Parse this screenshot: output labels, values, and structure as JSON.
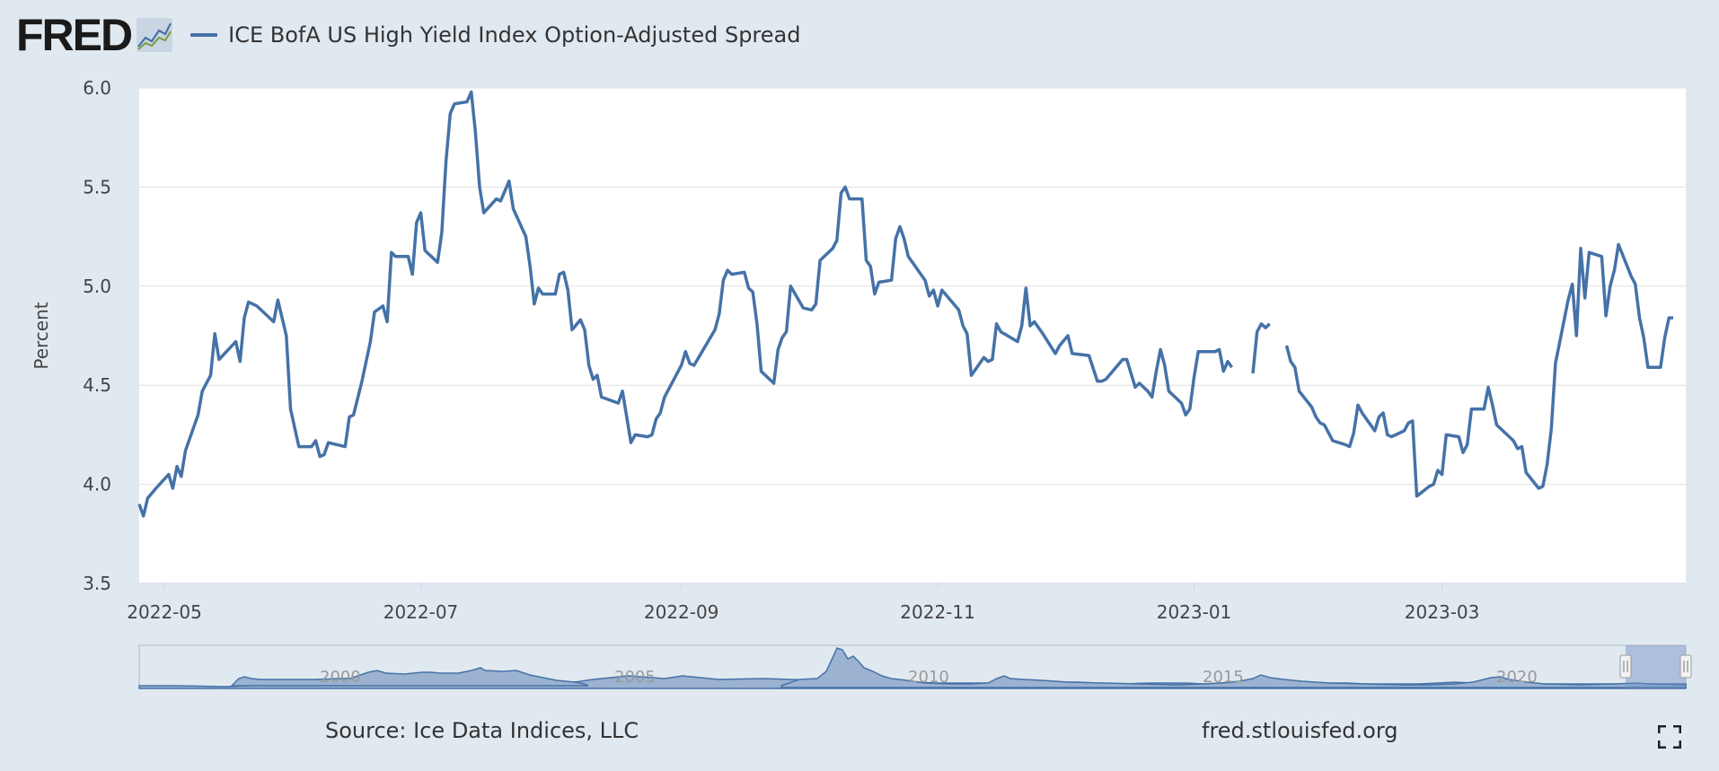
{
  "header": {
    "logo_text": "FRED",
    "logo_icon": "mini-line-chart-icon",
    "legend_label": "ICE BofA US High Yield Index Option-Adjusted Spread"
  },
  "footer": {
    "source": "Source: Ice Data Indices, LLC",
    "site": "fred.stlouisfed.org",
    "fullscreen_icon": "fullscreen-icon"
  },
  "colors": {
    "series": "#4572a7",
    "navigator_fill": "#9bb2d1",
    "background": "#e1e9f0",
    "plot_background": "#ffffff"
  },
  "chart_data": {
    "type": "line",
    "title": "",
    "xlabel": "",
    "ylabel": "Percent",
    "ylim": [
      3.5,
      6.0
    ],
    "y_ticks": [
      "3.5",
      "4.0",
      "4.5",
      "5.0",
      "5.5",
      "6.0"
    ],
    "x_ticks": [
      "2022-05",
      "2022-07",
      "2022-09",
      "2022-11",
      "2023-01",
      "2023-03"
    ],
    "x_tick_values": [
      "2022-05-01",
      "2022-07-01",
      "2022-09-01",
      "2022-11-01",
      "2023-01-01",
      "2023-03-01"
    ],
    "xlim": [
      "2022-04-25",
      "2023-04-28"
    ],
    "grid": true,
    "series": [
      {
        "name": "ICE BofA US High Yield Index Option-Adjusted Spread",
        "segments": [
          [
            [
              "2022-04-25",
              3.9
            ],
            [
              "2022-04-26",
              3.84
            ],
            [
              "2022-04-27",
              3.93
            ],
            [
              "2022-04-29",
              3.98
            ],
            [
              "2022-05-02",
              4.05
            ],
            [
              "2022-05-03",
              3.98
            ],
            [
              "2022-05-04",
              4.09
            ],
            [
              "2022-05-05",
              4.04
            ],
            [
              "2022-05-06",
              4.17
            ],
            [
              "2022-05-09",
              4.35
            ],
            [
              "2022-05-10",
              4.47
            ],
            [
              "2022-05-12",
              4.55
            ],
            [
              "2022-05-13",
              4.76
            ],
            [
              "2022-05-14",
              4.63
            ],
            [
              "2022-05-18",
              4.72
            ],
            [
              "2022-05-19",
              4.62
            ],
            [
              "2022-05-20",
              4.84
            ],
            [
              "2022-05-21",
              4.92
            ],
            [
              "2022-05-23",
              4.9
            ],
            [
              "2022-05-27",
              4.82
            ],
            [
              "2022-05-28",
              4.93
            ],
            [
              "2022-05-30",
              4.75
            ],
            [
              "2022-05-31",
              4.38
            ],
            [
              "2022-06-02",
              4.19
            ],
            [
              "2022-06-05",
              4.19
            ],
            [
              "2022-06-06",
              4.22
            ],
            [
              "2022-06-07",
              4.14
            ],
            [
              "2022-06-08",
              4.15
            ],
            [
              "2022-06-09",
              4.21
            ],
            [
              "2022-06-13",
              4.19
            ],
            [
              "2022-06-14",
              4.34
            ],
            [
              "2022-06-15",
              4.35
            ],
            [
              "2022-06-17",
              4.52
            ],
            [
              "2022-06-19",
              4.72
            ],
            [
              "2022-06-20",
              4.87
            ],
            [
              "2022-06-22",
              4.9
            ],
            [
              "2022-06-23",
              4.82
            ],
            [
              "2022-06-24",
              5.17
            ],
            [
              "2022-06-25",
              5.15
            ],
            [
              "2022-06-28",
              5.15
            ],
            [
              "2022-06-29",
              5.06
            ],
            [
              "2022-06-30",
              5.32
            ],
            [
              "2022-07-01",
              5.37
            ],
            [
              "2022-07-02",
              5.18
            ],
            [
              "2022-07-05",
              5.12
            ],
            [
              "2022-07-06",
              5.27
            ],
            [
              "2022-07-07",
              5.63
            ],
            [
              "2022-07-08",
              5.87
            ],
            [
              "2022-07-09",
              5.92
            ],
            [
              "2022-07-12",
              5.93
            ],
            [
              "2022-07-13",
              5.98
            ],
            [
              "2022-07-14",
              5.78
            ],
            [
              "2022-07-15",
              5.5
            ],
            [
              "2022-07-16",
              5.37
            ],
            [
              "2022-07-19",
              5.44
            ],
            [
              "2022-07-20",
              5.43
            ],
            [
              "2022-07-22",
              5.53
            ],
            [
              "2022-07-23",
              5.39
            ],
            [
              "2022-07-26",
              5.25
            ],
            [
              "2022-07-27",
              5.1
            ],
            [
              "2022-07-28",
              4.91
            ],
            [
              "2022-07-29",
              4.99
            ],
            [
              "2022-07-30",
              4.96
            ],
            [
              "2022-08-02",
              4.96
            ],
            [
              "2022-08-03",
              5.06
            ],
            [
              "2022-08-04",
              5.07
            ],
            [
              "2022-08-05",
              4.98
            ],
            [
              "2022-08-06",
              4.78
            ],
            [
              "2022-08-08",
              4.83
            ],
            [
              "2022-08-09",
              4.78
            ],
            [
              "2022-08-10",
              4.6
            ],
            [
              "2022-08-11",
              4.53
            ],
            [
              "2022-08-12",
              4.55
            ],
            [
              "2022-08-13",
              4.44
            ],
            [
              "2022-08-17",
              4.41
            ],
            [
              "2022-08-18",
              4.47
            ],
            [
              "2022-08-20",
              4.21
            ],
            [
              "2022-08-21",
              4.25
            ],
            [
              "2022-08-24",
              4.24
            ],
            [
              "2022-08-25",
              4.25
            ],
            [
              "2022-08-26",
              4.33
            ],
            [
              "2022-08-27",
              4.36
            ],
            [
              "2022-08-28",
              4.44
            ],
            [
              "2022-09-01",
              4.6
            ],
            [
              "2022-09-02",
              4.67
            ],
            [
              "2022-09-03",
              4.61
            ],
            [
              "2022-09-04",
              4.6
            ],
            [
              "2022-09-09",
              4.78
            ],
            [
              "2022-09-10",
              4.86
            ],
            [
              "2022-09-11",
              5.03
            ],
            [
              "2022-09-12",
              5.08
            ],
            [
              "2022-09-13",
              5.06
            ],
            [
              "2022-09-16",
              5.07
            ],
            [
              "2022-09-17",
              4.99
            ],
            [
              "2022-09-18",
              4.97
            ],
            [
              "2022-09-19",
              4.81
            ],
            [
              "2022-09-20",
              4.57
            ],
            [
              "2022-09-23",
              4.51
            ],
            [
              "2022-09-24",
              4.68
            ],
            [
              "2022-09-25",
              4.74
            ],
            [
              "2022-09-26",
              4.77
            ],
            [
              "2022-09-27",
              5.0
            ],
            [
              "2022-09-30",
              4.89
            ],
            [
              "2022-10-02",
              4.88
            ],
            [
              "2022-10-03",
              4.91
            ],
            [
              "2022-10-04",
              5.13
            ],
            [
              "2022-10-07",
              5.19
            ],
            [
              "2022-10-08",
              5.23
            ],
            [
              "2022-10-09",
              5.47
            ],
            [
              "2022-10-10",
              5.5
            ],
            [
              "2022-10-11",
              5.44
            ],
            [
              "2022-10-14",
              5.44
            ],
            [
              "2022-10-15",
              5.13
            ],
            [
              "2022-10-16",
              5.1
            ],
            [
              "2022-10-17",
              4.96
            ],
            [
              "2022-10-18",
              5.02
            ],
            [
              "2022-10-21",
              5.03
            ],
            [
              "2022-10-22",
              5.24
            ],
            [
              "2022-10-23",
              5.3
            ],
            [
              "2022-10-24",
              5.24
            ],
            [
              "2022-10-25",
              5.15
            ],
            [
              "2022-10-29",
              5.03
            ],
            [
              "2022-10-30",
              4.95
            ],
            [
              "2022-10-31",
              4.98
            ],
            [
              "2022-11-01",
              4.9
            ],
            [
              "2022-11-02",
              4.98
            ],
            [
              "2022-11-06",
              4.88
            ],
            [
              "2022-11-07",
              4.8
            ],
            [
              "2022-11-08",
              4.76
            ],
            [
              "2022-11-09",
              4.55
            ],
            [
              "2022-11-12",
              4.64
            ],
            [
              "2022-11-13",
              4.62
            ],
            [
              "2022-11-14",
              4.63
            ],
            [
              "2022-11-15",
              4.81
            ],
            [
              "2022-11-16",
              4.77
            ],
            [
              "2022-11-20",
              4.72
            ],
            [
              "2022-11-21",
              4.8
            ],
            [
              "2022-11-22",
              4.99
            ],
            [
              "2022-11-23",
              4.8
            ],
            [
              "2022-11-24",
              4.82
            ],
            [
              "2022-11-26",
              4.76
            ],
            [
              "2022-11-29",
              4.66
            ],
            [
              "2022-11-30",
              4.7
            ],
            [
              "2022-12-02",
              4.75
            ],
            [
              "2022-12-03",
              4.66
            ],
            [
              "2022-12-07",
              4.65
            ],
            [
              "2022-12-09",
              4.52
            ],
            [
              "2022-12-10",
              4.52
            ],
            [
              "2022-12-11",
              4.53
            ],
            [
              "2022-12-15",
              4.63
            ],
            [
              "2022-12-16",
              4.63
            ],
            [
              "2022-12-18",
              4.49
            ],
            [
              "2022-12-19",
              4.51
            ],
            [
              "2022-12-21",
              4.47
            ],
            [
              "2022-12-22",
              4.44
            ],
            [
              "2022-12-23",
              4.57
            ],
            [
              "2022-12-24",
              4.68
            ],
            [
              "2022-12-25",
              4.6
            ],
            [
              "2022-12-26",
              4.47
            ],
            [
              "2022-12-29",
              4.41
            ],
            [
              "2022-12-30",
              4.35
            ],
            [
              "2022-12-31",
              4.38
            ],
            [
              "2023-01-01",
              4.54
            ],
            [
              "2023-01-02",
              4.67
            ],
            [
              "2023-01-06",
              4.67
            ],
            [
              "2023-01-07",
              4.68
            ],
            [
              "2023-01-08",
              4.57
            ],
            [
              "2023-01-09",
              4.62
            ],
            [
              "2023-01-10",
              4.59
            ]
          ],
          [
            [
              "2023-01-15",
              4.56
            ],
            [
              "2023-01-16",
              4.77
            ],
            [
              "2023-01-17",
              4.81
            ],
            [
              "2023-01-18",
              4.79
            ],
            [
              "2023-01-19",
              4.81
            ]
          ],
          [
            [
              "2023-01-23",
              4.7
            ],
            [
              "2023-01-24",
              4.62
            ],
            [
              "2023-01-25",
              4.59
            ],
            [
              "2023-01-26",
              4.47
            ],
            [
              "2023-01-29",
              4.39
            ],
            [
              "2023-01-30",
              4.34
            ],
            [
              "2023-01-31",
              4.31
            ],
            [
              "2023-02-01",
              4.3
            ],
            [
              "2023-02-03",
              4.22
            ],
            [
              "2023-02-06",
              4.2
            ],
            [
              "2023-02-07",
              4.19
            ],
            [
              "2023-02-08",
              4.26
            ],
            [
              "2023-02-09",
              4.4
            ],
            [
              "2023-02-10",
              4.36
            ],
            [
              "2023-02-13",
              4.27
            ],
            [
              "2023-02-14",
              4.34
            ],
            [
              "2023-02-15",
              4.36
            ],
            [
              "2023-02-16",
              4.25
            ],
            [
              "2023-02-17",
              4.24
            ],
            [
              "2023-02-20",
              4.27
            ],
            [
              "2023-02-21",
              4.31
            ],
            [
              "2023-02-22",
              4.32
            ],
            [
              "2023-02-23",
              3.94
            ],
            [
              "2023-02-26",
              3.99
            ],
            [
              "2023-02-27",
              4.0
            ],
            [
              "2023-02-28",
              4.07
            ],
            [
              "2023-03-01",
              4.05
            ],
            [
              "2023-03-02",
              4.25
            ],
            [
              "2023-03-05",
              4.24
            ],
            [
              "2023-03-06",
              4.16
            ],
            [
              "2023-03-07",
              4.2
            ],
            [
              "2023-03-08",
              4.38
            ],
            [
              "2023-03-11",
              4.38
            ],
            [
              "2023-03-12",
              4.49
            ],
            [
              "2023-03-13",
              4.4
            ],
            [
              "2023-03-14",
              4.3
            ],
            [
              "2023-03-17",
              4.24
            ],
            [
              "2023-03-18",
              4.22
            ],
            [
              "2023-03-19",
              4.18
            ],
            [
              "2023-03-20",
              4.19
            ],
            [
              "2023-03-21",
              4.06
            ],
            [
              "2023-03-24",
              3.98
            ],
            [
              "2023-03-25",
              3.99
            ],
            [
              "2023-03-26",
              4.1
            ],
            [
              "2023-03-27",
              4.28
            ],
            [
              "2023-03-28",
              4.61
            ],
            [
              "2023-03-31",
              4.93
            ],
            [
              "2023-04-01",
              5.01
            ],
            [
              "2023-04-02",
              4.75
            ],
            [
              "2023-04-03",
              5.19
            ],
            [
              "2023-04-04",
              4.94
            ],
            [
              "2023-04-05",
              5.17
            ],
            [
              "2023-04-08",
              5.15
            ],
            [
              "2023-04-09",
              4.85
            ],
            [
              "2023-04-10",
              5.0
            ],
            [
              "2023-04-11",
              5.08
            ],
            [
              "2023-04-12",
              5.21
            ],
            [
              "2023-04-15",
              5.05
            ],
            [
              "2023-04-16",
              5.01
            ],
            [
              "2023-04-17",
              4.84
            ],
            [
              "2023-04-18",
              4.74
            ],
            [
              "2023-04-19",
              4.59
            ],
            [
              "2023-04-22",
              4.59
            ],
            [
              "2023-04-23",
              4.74
            ],
            [
              "2023-04-24",
              4.84
            ],
            [
              "2023-04-25",
              4.84
            ]
          ]
        ]
      }
    ]
  }
}
